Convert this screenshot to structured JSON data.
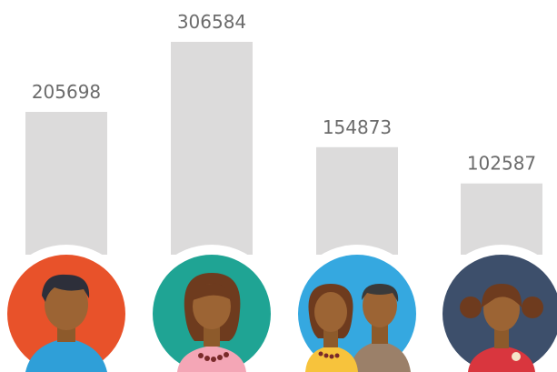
{
  "chart_data": {
    "type": "bar",
    "values": [
      205698,
      306584,
      154873,
      102587
    ],
    "color": "#dcdbdb"
  }
}
